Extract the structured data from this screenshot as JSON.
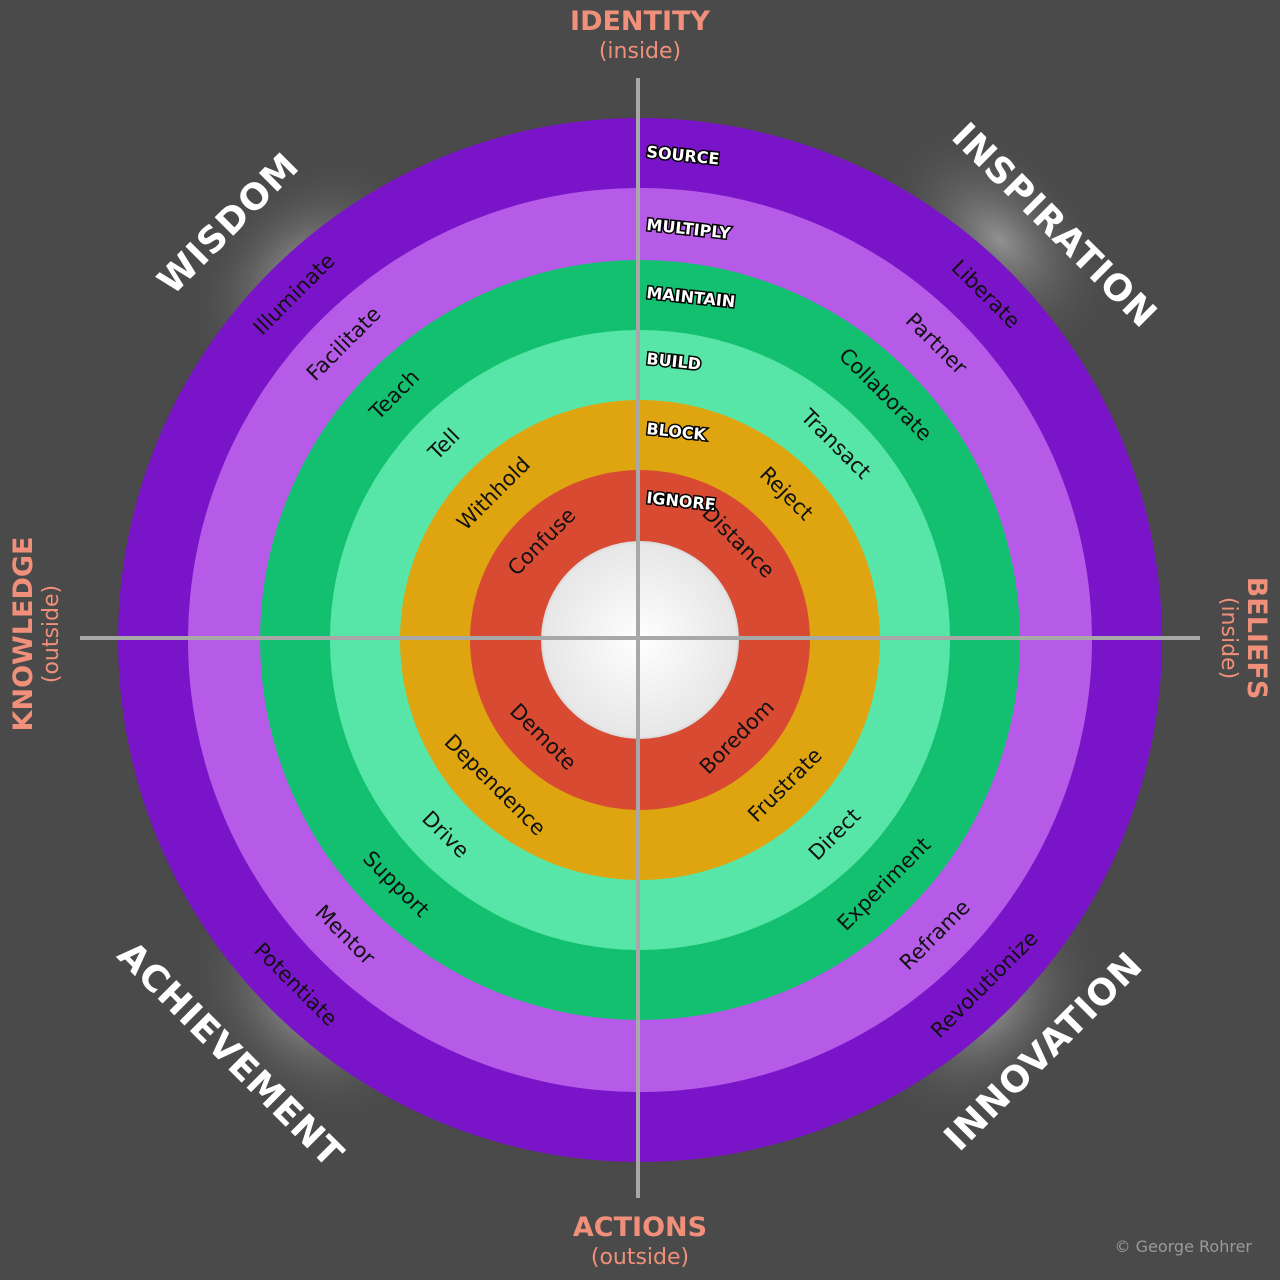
{
  "axes": {
    "top": {
      "title": "IDENTITY",
      "sub": "(inside)"
    },
    "bottom": {
      "title": "ACTIONS",
      "sub": "(outside)"
    },
    "left": {
      "title": "KNOWLEDGE",
      "sub": "(outside)"
    },
    "right": {
      "title": "BELIEFS",
      "sub": "(inside)"
    }
  },
  "quadrants": {
    "top_left": "WISDOM",
    "top_right": "INSPIRATION",
    "bottom_left": "ACHIEVEMENT",
    "bottom_right": "INNOVATION"
  },
  "levels": [
    "SOURCE",
    "MULTIPLY",
    "MAINTAIN",
    "BUILD",
    "BLOCK",
    "IGNORE"
  ],
  "rings": [
    {
      "color": "#7a14c8",
      "top_left": "Illuminate",
      "top_right": "Liberate",
      "bottom_left": "Potentiate",
      "bottom_right": "Revolutionize"
    },
    {
      "color": "#b65ae8",
      "top_left": "Facilitate",
      "top_right": "Partner",
      "bottom_left": "Mentor",
      "bottom_right": "Reframe"
    },
    {
      "color": "#12c070",
      "top_left": "Teach",
      "top_right": "Collaborate",
      "bottom_left": "Support",
      "bottom_right": "Experiment"
    },
    {
      "color": "#58e6a8",
      "top_left": "Tell",
      "top_right": "Transact",
      "bottom_left": "Drive",
      "bottom_right": "Direct"
    },
    {
      "color": "#dea510",
      "top_left": "Withhold",
      "top_right": "Reject",
      "bottom_left": "Dependence",
      "bottom_right": "Frustrate"
    },
    {
      "color": "#d84a32",
      "top_left": "Confuse",
      "top_right": "Distance",
      "bottom_left": "Demote",
      "bottom_right": "Boredom"
    }
  ],
  "center_color": "#ffffff",
  "copyright": "© George Rohrer"
}
